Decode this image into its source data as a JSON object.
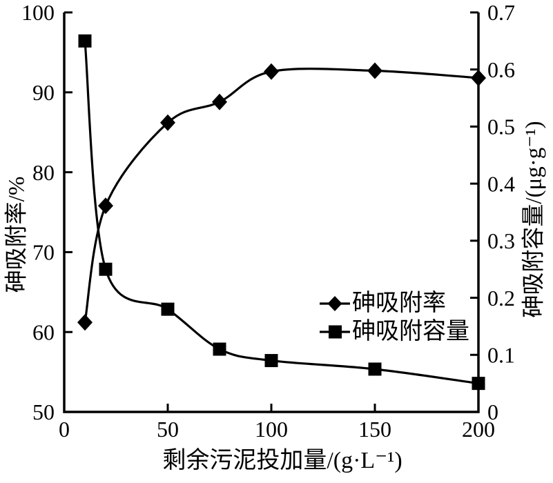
{
  "chart_data": {
    "type": "line",
    "title": "",
    "background": "#ffffff",
    "line_color": "#000000",
    "grid": false,
    "x": {
      "label": "剩余污泥投加量/(g·L⁻¹)",
      "min": 0,
      "max": 200,
      "ticks": [
        0,
        50,
        100,
        150,
        200
      ]
    },
    "y_left": {
      "label": "砷吸附率/%",
      "min": 50,
      "max": 100,
      "ticks": [
        50,
        60,
        70,
        80,
        90,
        100
      ]
    },
    "y_right": {
      "label": "砷吸附容量/(μg·g⁻¹)",
      "min": 0,
      "max": 0.7,
      "ticks": [
        0,
        0.1,
        0.2,
        0.3,
        0.4,
        0.5,
        0.6,
        0.7
      ]
    },
    "x_values": [
      10,
      20,
      50,
      75,
      100,
      150,
      200
    ],
    "series": [
      {
        "name": "砷吸附率",
        "axis": "left",
        "marker": "diamond",
        "values": [
          61.2,
          75.8,
          86.2,
          88.8,
          92.6,
          92.7,
          91.8
        ]
      },
      {
        "name": "砷吸附容量",
        "axis": "right",
        "marker": "square",
        "values": [
          0.65,
          0.25,
          0.18,
          0.11,
          0.09,
          0.075,
          0.05
        ]
      }
    ],
    "legend": {
      "position": "inside-right",
      "border": false
    }
  }
}
